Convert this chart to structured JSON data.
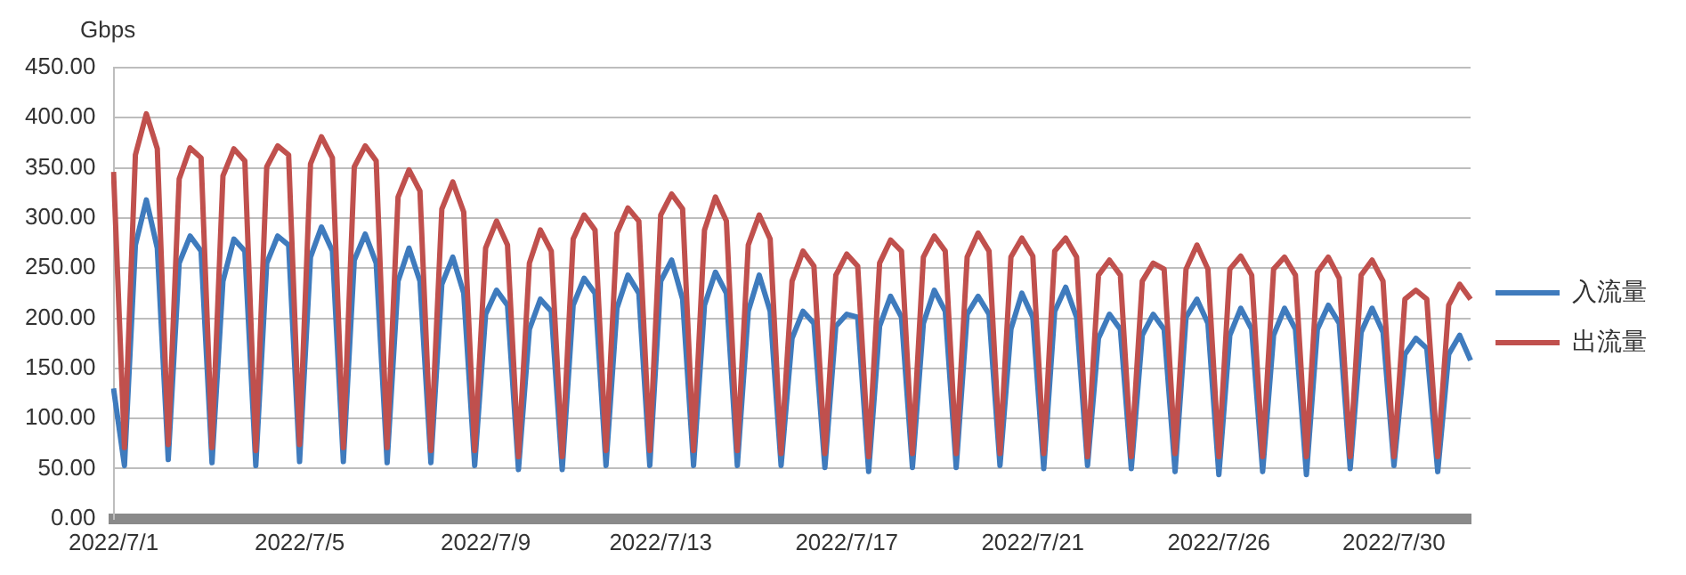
{
  "chart_data": {
    "type": "line",
    "ylabel": "Gbps",
    "categories": [
      "2022/7/1",
      null,
      null,
      null,
      null,
      null,
      null,
      null,
      null,
      null,
      null,
      null,
      null,
      null,
      null,
      null,
      null,
      "2022/7/5",
      null,
      null,
      null,
      null,
      null,
      null,
      null,
      null,
      null,
      null,
      null,
      null,
      null,
      null,
      null,
      null,
      "2022/7/9",
      null,
      null,
      null,
      null,
      null,
      null,
      null,
      null,
      null,
      null,
      null,
      null,
      null,
      null,
      null,
      "2022/7/13",
      null,
      null,
      null,
      null,
      null,
      null,
      null,
      null,
      null,
      null,
      null,
      null,
      null,
      null,
      null,
      null,
      "2022/7/17",
      null,
      null,
      null,
      null,
      null,
      null,
      null,
      null,
      null,
      null,
      null,
      null,
      null,
      null,
      null,
      null,
      "2022/7/21",
      null,
      null,
      null,
      null,
      null,
      null,
      null,
      null,
      null,
      null,
      null,
      null,
      null,
      null,
      null,
      null,
      "2022/7/26",
      null,
      null,
      null,
      null,
      null,
      null,
      null,
      null,
      null,
      null,
      null,
      null,
      null,
      null,
      null,
      "2022/7/30",
      null,
      null,
      null,
      null,
      null,
      null,
      null
    ],
    "series": [
      {
        "name": "入流量",
        "color": "#3f7bbd",
        "values": [
          130,
          53,
          273,
          318,
          270,
          59,
          255,
          282,
          267,
          56,
          237,
          279,
          267,
          53,
          255,
          282,
          273,
          57,
          261,
          291,
          267,
          57,
          258,
          284,
          255,
          56,
          237,
          270,
          237,
          56,
          234,
          261,
          225,
          53,
          204,
          228,
          213,
          49,
          189,
          219,
          207,
          49,
          213,
          240,
          225,
          53,
          210,
          243,
          225,
          53,
          237,
          258,
          219,
          53,
          213,
          246,
          225,
          53,
          207,
          243,
          207,
          53,
          180,
          207,
          195,
          51,
          192,
          204,
          201,
          47,
          192,
          222,
          201,
          51,
          195,
          228,
          207,
          51,
          204,
          222,
          204,
          53,
          189,
          225,
          201,
          50,
          207,
          231,
          201,
          53,
          180,
          204,
          189,
          50,
          183,
          204,
          189,
          47,
          201,
          219,
          195,
          44,
          183,
          210,
          189,
          47,
          183,
          210,
          189,
          44,
          189,
          213,
          195,
          50,
          186,
          210,
          186,
          53,
          164,
          180,
          170,
          47,
          164,
          183,
          158
        ]
      },
      {
        "name": "出流量",
        "color": "#c0504d",
        "values": [
          346,
          71,
          363,
          404,
          369,
          74,
          339,
          370,
          360,
          71,
          342,
          369,
          357,
          68,
          351,
          372,
          363,
          74,
          354,
          381,
          360,
          71,
          351,
          372,
          357,
          71,
          321,
          348,
          327,
          68,
          309,
          336,
          306,
          68,
          270,
          297,
          273,
          62,
          255,
          288,
          267,
          62,
          279,
          303,
          288,
          68,
          285,
          310,
          297,
          68,
          303,
          324,
          309,
          68,
          288,
          321,
          297,
          68,
          273,
          303,
          279,
          65,
          237,
          267,
          252,
          65,
          243,
          264,
          252,
          62,
          255,
          278,
          267,
          65,
          261,
          282,
          267,
          65,
          261,
          285,
          267,
          65,
          261,
          280,
          262,
          65,
          267,
          280,
          261,
          62,
          243,
          258,
          243,
          62,
          237,
          255,
          249,
          65,
          249,
          273,
          249,
          62,
          249,
          262,
          243,
          62,
          249,
          261,
          243,
          62,
          246,
          261,
          240,
          62,
          243,
          258,
          237,
          62,
          219,
          228,
          219,
          62,
          213,
          234,
          219
        ]
      }
    ],
    "ylim": [
      0,
      450
    ],
    "yticks": [
      {
        "value": 0,
        "label": "0.00"
      },
      {
        "value": 50,
        "label": "50.00"
      },
      {
        "value": 100,
        "label": "100.00"
      },
      {
        "value": 150,
        "label": "150.00"
      },
      {
        "value": 200,
        "label": "200.00"
      },
      {
        "value": 250,
        "label": "250.00"
      },
      {
        "value": 300,
        "label": "300.00"
      },
      {
        "value": 350,
        "label": "350.00"
      },
      {
        "value": 400,
        "label": "400.00"
      },
      {
        "value": 450,
        "label": "450.00"
      }
    ],
    "grid": "y",
    "legend": "right",
    "line_style": "solid"
  }
}
